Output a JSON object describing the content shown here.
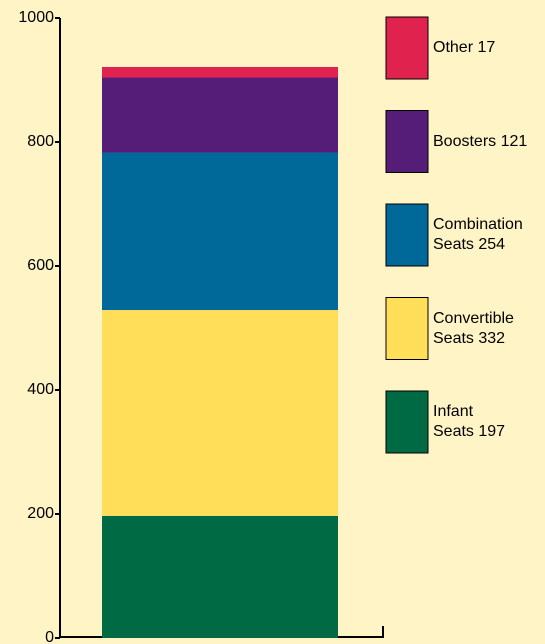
{
  "chart_data": {
    "type": "stacked-bar",
    "series": [
      {
        "name": "Infant\nSeats",
        "color": "#006a44",
        "values": [
          197
        ]
      },
      {
        "name": "Convertible\nSeats",
        "color": "#ffde59",
        "values": [
          332
        ]
      },
      {
        "name": "Combination\nSeats",
        "color": "#00699a",
        "values": [
          254
        ]
      },
      {
        "name": "Boosters",
        "color": "#561d78",
        "values": [
          121
        ]
      },
      {
        "name": "Other",
        "color": "#e0224f",
        "values": [
          17
        ]
      }
    ],
    "ylim": [
      0,
      1000
    ],
    "yticks": [
      0,
      200,
      400,
      600,
      800,
      1000
    ]
  }
}
